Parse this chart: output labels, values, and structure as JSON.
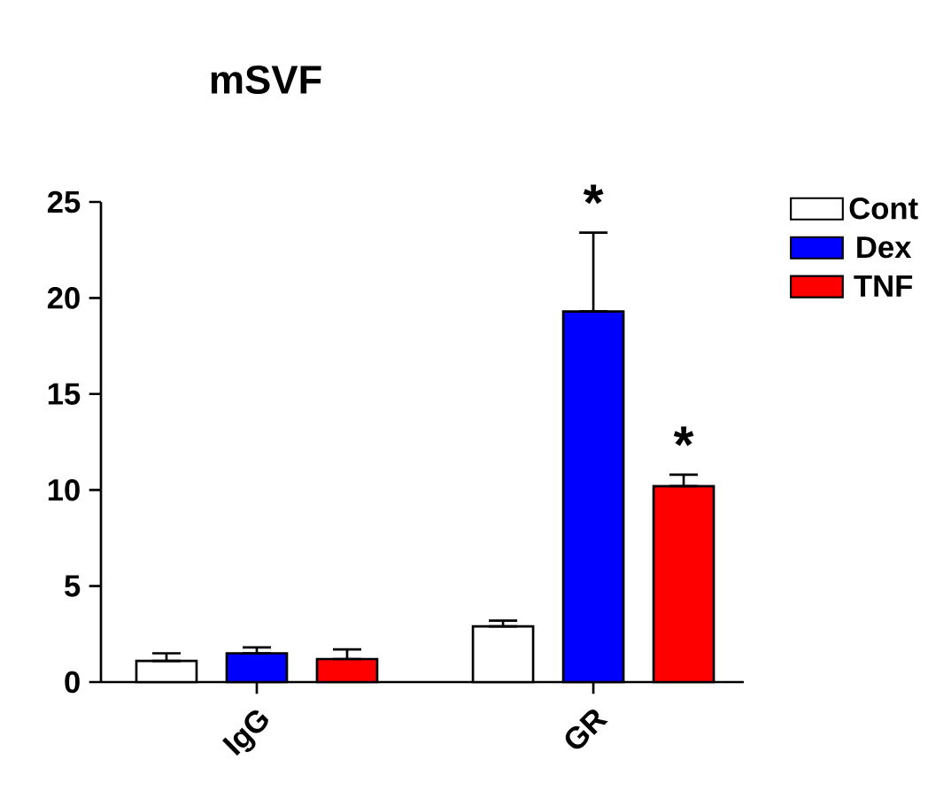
{
  "chart_data": {
    "type": "bar",
    "title": "mSVF",
    "categories": [
      "IgG",
      "GR"
    ],
    "series": [
      {
        "name": "Cont",
        "color": "#ffffff",
        "values": [
          1.1,
          2.9
        ],
        "errors": [
          [
            1.1,
            1.5
          ],
          [
            2.9,
            3.2
          ]
        ]
      },
      {
        "name": "Dex",
        "color": "#0000ff",
        "values": [
          1.5,
          19.3
        ],
        "errors": [
          [
            1.5,
            1.8
          ],
          [
            19.3,
            23.4
          ]
        ]
      },
      {
        "name": "TNF",
        "color": "#ff0000",
        "values": [
          1.2,
          10.2
        ],
        "errors": [
          [
            1.2,
            1.7
          ],
          [
            10.2,
            10.8
          ]
        ]
      }
    ],
    "annotations": [
      "*",
      "*"
    ],
    "ylim": [
      0,
      25
    ],
    "yticks": [
      0,
      5,
      10,
      15,
      20,
      25
    ],
    "legend": "top right"
  }
}
